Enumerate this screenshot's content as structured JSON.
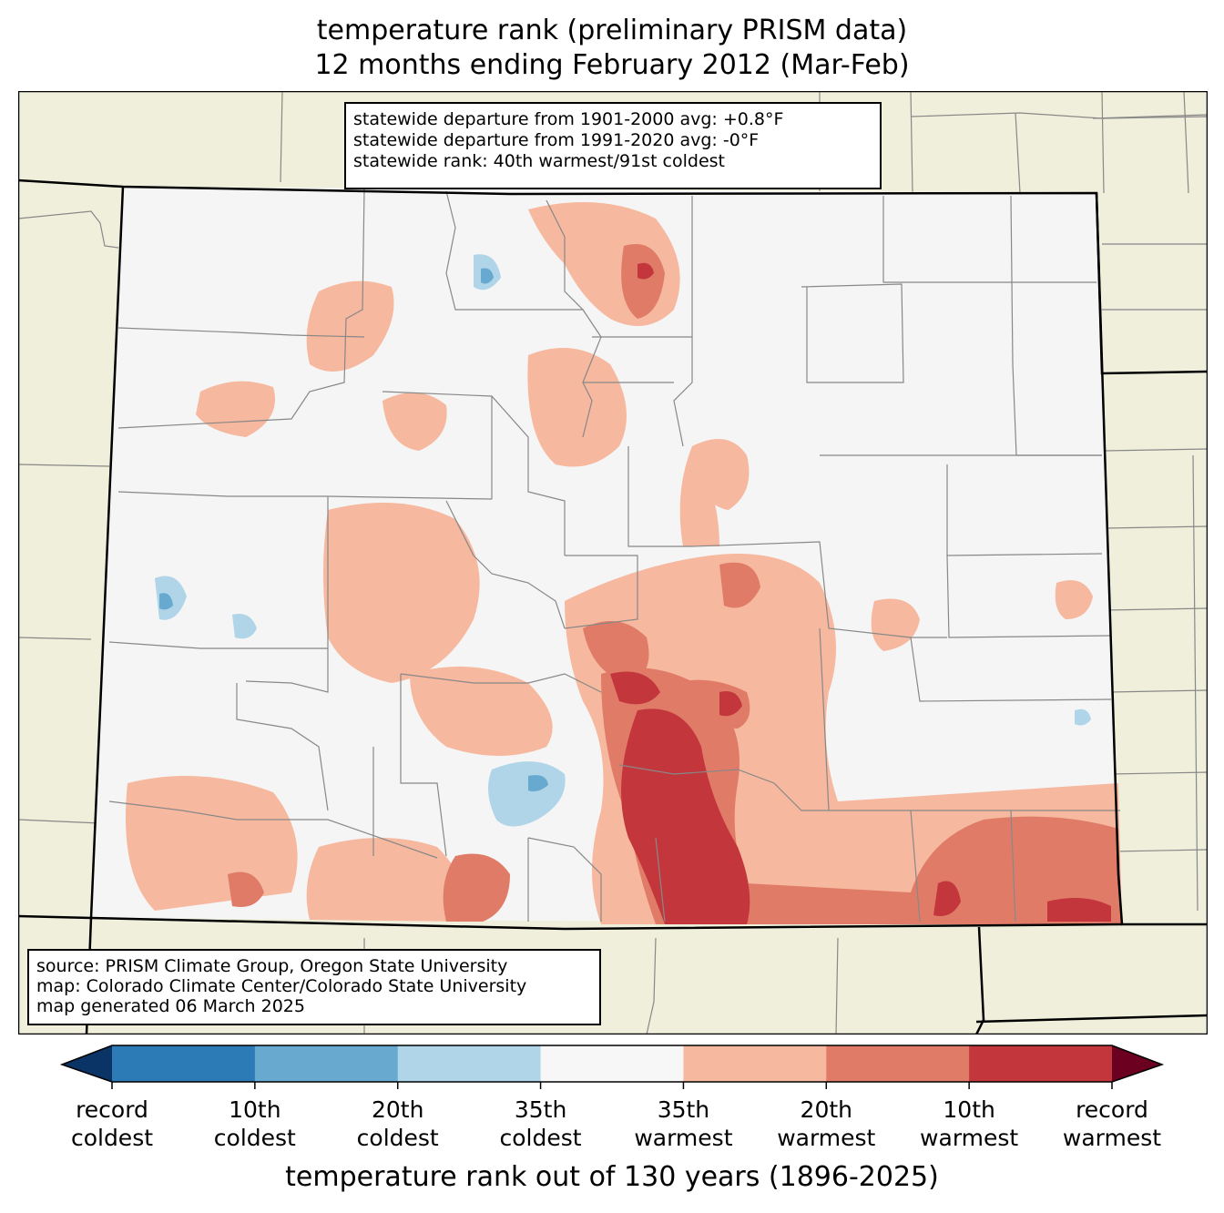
{
  "title": {
    "line1": "temperature rank (preliminary PRISM data)",
    "line2": "12 months ending February 2012 (Mar-Feb)"
  },
  "stats": {
    "line1": "statewide departure from 1901-2000 avg: +0.8°F",
    "line2": "statewide departure from 1991-2020 avg: -0°F",
    "line3": "statewide rank: 40th warmest/91st coldest"
  },
  "credits": {
    "line1": "source: PRISM Climate Group, Oregon State University",
    "line2": "map: Colorado Climate Center/Colorado State University",
    "line3": "map generated 06 March 2025"
  },
  "colorbar": {
    "title": "temperature rank out of 130 years (1896-2025)",
    "bins": [
      {
        "color": "#2c7bb6",
        "label": ""
      },
      {
        "color": "#67a9cf",
        "label": ""
      },
      {
        "color": "#b0d4e8",
        "label": ""
      },
      {
        "color": "#f7f7f7",
        "label": ""
      },
      {
        "color": "#f6b89e",
        "label": ""
      },
      {
        "color": "#e07b68",
        "label": ""
      },
      {
        "color": "#c2363c",
        "label": ""
      }
    ],
    "low_extend_color": "#0b3466",
    "high_extend_color": "#6b0020",
    "ticks": [
      {
        "l1": "record",
        "l2": "coldest"
      },
      {
        "l1": "10th",
        "l2": "coldest"
      },
      {
        "l1": "20th",
        "l2": "coldest"
      },
      {
        "l1": "35th",
        "l2": "coldest"
      },
      {
        "l1": "35th",
        "l2": "warmest"
      },
      {
        "l1": "20th",
        "l2": "warmest"
      },
      {
        "l1": "10th",
        "l2": "warmest"
      },
      {
        "l1": "record",
        "l2": "warmest"
      }
    ]
  },
  "colors": {
    "background_land": "#efefdc",
    "state_fill": "#f5f5f5",
    "county_lines": "#888888",
    "state_border": "#000000"
  }
}
